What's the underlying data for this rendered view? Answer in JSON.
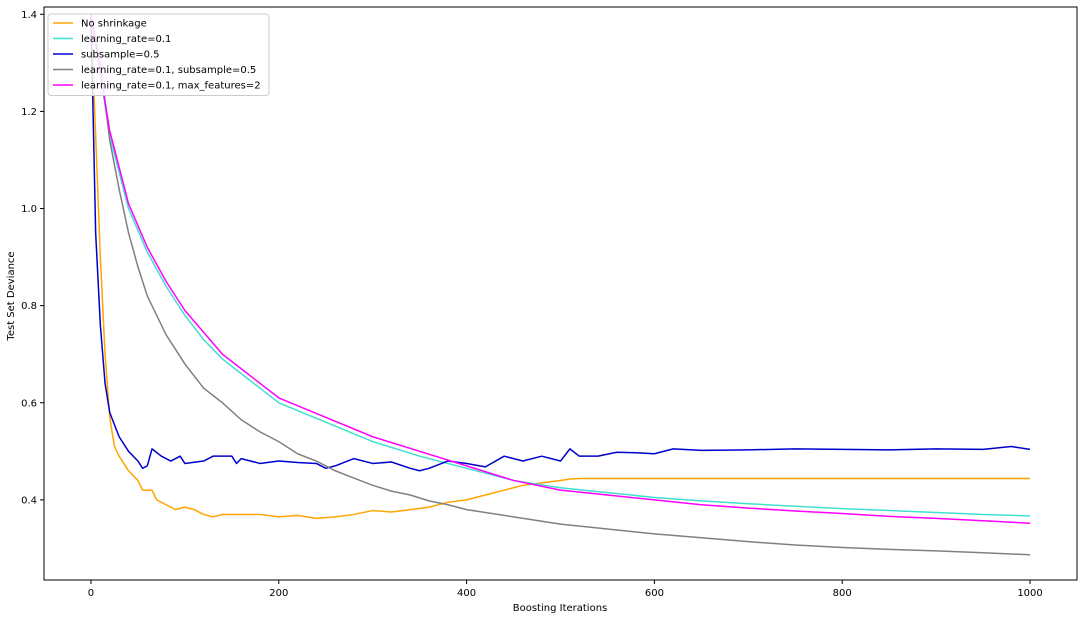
{
  "chart_data": {
    "type": "line",
    "title": "",
    "xlabel": "Boosting Iterations",
    "ylabel": "Test Set Deviance",
    "xlim": [
      -50,
      1050
    ],
    "ylim": [
      0.235,
      1.415
    ],
    "x_ticks": [
      0,
      200,
      400,
      600,
      800,
      1000
    ],
    "x_tick_labels": [
      "0",
      "200",
      "400",
      "600",
      "800",
      "1000"
    ],
    "y_ticks": [
      0.4,
      0.6,
      0.8,
      1.0,
      1.2,
      1.4
    ],
    "y_tick_labels": [
      "0.4",
      "0.6",
      "0.8",
      "1.0",
      "1.2",
      "1.4"
    ],
    "grid": false,
    "legend_position": "top-left",
    "series": [
      {
        "name": "No shrinkage",
        "color": "#FFA500",
        "points": [
          [
            0,
            1.4
          ],
          [
            5,
            1.15
          ],
          [
            10,
            0.9
          ],
          [
            15,
            0.7
          ],
          [
            20,
            0.57
          ],
          [
            25,
            0.51
          ],
          [
            30,
            0.49
          ],
          [
            40,
            0.46
          ],
          [
            50,
            0.44
          ],
          [
            55,
            0.42
          ],
          [
            65,
            0.42
          ],
          [
            70,
            0.4
          ],
          [
            80,
            0.39
          ],
          [
            90,
            0.38
          ],
          [
            100,
            0.385
          ],
          [
            110,
            0.38
          ],
          [
            120,
            0.37
          ],
          [
            130,
            0.365
          ],
          [
            140,
            0.37
          ],
          [
            160,
            0.37
          ],
          [
            180,
            0.37
          ],
          [
            200,
            0.365
          ],
          [
            220,
            0.368
          ],
          [
            240,
            0.362
          ],
          [
            260,
            0.365
          ],
          [
            280,
            0.37
          ],
          [
            300,
            0.378
          ],
          [
            320,
            0.375
          ],
          [
            340,
            0.38
          ],
          [
            360,
            0.385
          ],
          [
            380,
            0.395
          ],
          [
            400,
            0.4
          ],
          [
            420,
            0.41
          ],
          [
            440,
            0.42
          ],
          [
            460,
            0.43
          ],
          [
            480,
            0.435
          ],
          [
            500,
            0.44
          ],
          [
            510,
            0.443
          ],
          [
            520,
            0.444
          ],
          [
            1000,
            0.444
          ]
        ]
      },
      {
        "name": "learning_rate=0.1",
        "color": "#40E0D0",
        "points": [
          [
            0,
            1.4
          ],
          [
            20,
            1.15
          ],
          [
            40,
            1.0
          ],
          [
            60,
            0.91
          ],
          [
            80,
            0.84
          ],
          [
            100,
            0.78
          ],
          [
            120,
            0.73
          ],
          [
            140,
            0.69
          ],
          [
            160,
            0.66
          ],
          [
            180,
            0.63
          ],
          [
            200,
            0.6
          ],
          [
            250,
            0.56
          ],
          [
            300,
            0.52
          ],
          [
            350,
            0.49
          ],
          [
            400,
            0.465
          ],
          [
            450,
            0.44
          ],
          [
            500,
            0.425
          ],
          [
            550,
            0.415
          ],
          [
            600,
            0.405
          ],
          [
            650,
            0.398
          ],
          [
            700,
            0.392
          ],
          [
            750,
            0.387
          ],
          [
            800,
            0.382
          ],
          [
            850,
            0.378
          ],
          [
            900,
            0.374
          ],
          [
            950,
            0.37
          ],
          [
            1000,
            0.367
          ]
        ]
      },
      {
        "name": "subsample=0.5",
        "color": "#0000CD",
        "points": [
          [
            0,
            1.4
          ],
          [
            5,
            0.95
          ],
          [
            10,
            0.76
          ],
          [
            15,
            0.64
          ],
          [
            20,
            0.58
          ],
          [
            30,
            0.53
          ],
          [
            40,
            0.5
          ],
          [
            50,
            0.48
          ],
          [
            55,
            0.465
          ],
          [
            60,
            0.47
          ],
          [
            65,
            0.505
          ],
          [
            75,
            0.49
          ],
          [
            85,
            0.48
          ],
          [
            95,
            0.49
          ],
          [
            100,
            0.475
          ],
          [
            120,
            0.48
          ],
          [
            130,
            0.49
          ],
          [
            150,
            0.49
          ],
          [
            155,
            0.475
          ],
          [
            160,
            0.485
          ],
          [
            180,
            0.475
          ],
          [
            200,
            0.48
          ],
          [
            220,
            0.477
          ],
          [
            240,
            0.475
          ],
          [
            250,
            0.465
          ],
          [
            260,
            0.47
          ],
          [
            280,
            0.485
          ],
          [
            300,
            0.475
          ],
          [
            320,
            0.478
          ],
          [
            340,
            0.465
          ],
          [
            350,
            0.46
          ],
          [
            360,
            0.465
          ],
          [
            380,
            0.48
          ],
          [
            400,
            0.475
          ],
          [
            420,
            0.468
          ],
          [
            440,
            0.49
          ],
          [
            460,
            0.48
          ],
          [
            480,
            0.49
          ],
          [
            500,
            0.48
          ],
          [
            510,
            0.505
          ],
          [
            520,
            0.49
          ],
          [
            540,
            0.49
          ],
          [
            560,
            0.498
          ],
          [
            580,
            0.497
          ],
          [
            600,
            0.495
          ],
          [
            620,
            0.505
          ],
          [
            650,
            0.502
          ],
          [
            700,
            0.503
          ],
          [
            750,
            0.505
          ],
          [
            800,
            0.504
          ],
          [
            850,
            0.503
          ],
          [
            900,
            0.505
          ],
          [
            950,
            0.504
          ],
          [
            980,
            0.51
          ],
          [
            1000,
            0.504
          ]
        ]
      },
      {
        "name": "learning_rate=0.1, subsample=0.5",
        "color": "#808080",
        "points": [
          [
            0,
            1.4
          ],
          [
            10,
            1.3
          ],
          [
            20,
            1.14
          ],
          [
            30,
            1.04
          ],
          [
            40,
            0.95
          ],
          [
            50,
            0.88
          ],
          [
            60,
            0.82
          ],
          [
            70,
            0.78
          ],
          [
            80,
            0.74
          ],
          [
            90,
            0.71
          ],
          [
            100,
            0.68
          ],
          [
            120,
            0.63
          ],
          [
            140,
            0.6
          ],
          [
            160,
            0.565
          ],
          [
            180,
            0.54
          ],
          [
            200,
            0.52
          ],
          [
            220,
            0.495
          ],
          [
            240,
            0.48
          ],
          [
            260,
            0.46
          ],
          [
            280,
            0.445
          ],
          [
            300,
            0.43
          ],
          [
            320,
            0.418
          ],
          [
            340,
            0.41
          ],
          [
            360,
            0.398
          ],
          [
            380,
            0.39
          ],
          [
            400,
            0.38
          ],
          [
            450,
            0.365
          ],
          [
            500,
            0.35
          ],
          [
            550,
            0.34
          ],
          [
            600,
            0.33
          ],
          [
            650,
            0.322
          ],
          [
            700,
            0.314
          ],
          [
            750,
            0.307
          ],
          [
            800,
            0.302
          ],
          [
            850,
            0.298
          ],
          [
            900,
            0.295
          ],
          [
            950,
            0.291
          ],
          [
            1000,
            0.287
          ]
        ]
      },
      {
        "name": "learning_rate=0.1, max_features=2",
        "color": "#FF00FF",
        "points": [
          [
            0,
            1.4
          ],
          [
            20,
            1.16
          ],
          [
            40,
            1.01
          ],
          [
            60,
            0.92
          ],
          [
            80,
            0.85
          ],
          [
            100,
            0.79
          ],
          [
            120,
            0.745
          ],
          [
            140,
            0.7
          ],
          [
            160,
            0.67
          ],
          [
            180,
            0.64
          ],
          [
            200,
            0.61
          ],
          [
            250,
            0.57
          ],
          [
            300,
            0.53
          ],
          [
            350,
            0.5
          ],
          [
            400,
            0.47
          ],
          [
            450,
            0.44
          ],
          [
            500,
            0.42
          ],
          [
            550,
            0.41
          ],
          [
            600,
            0.4
          ],
          [
            650,
            0.39
          ],
          [
            700,
            0.383
          ],
          [
            750,
            0.377
          ],
          [
            800,
            0.372
          ],
          [
            850,
            0.366
          ],
          [
            900,
            0.362
          ],
          [
            950,
            0.357
          ],
          [
            1000,
            0.352
          ]
        ]
      }
    ]
  }
}
